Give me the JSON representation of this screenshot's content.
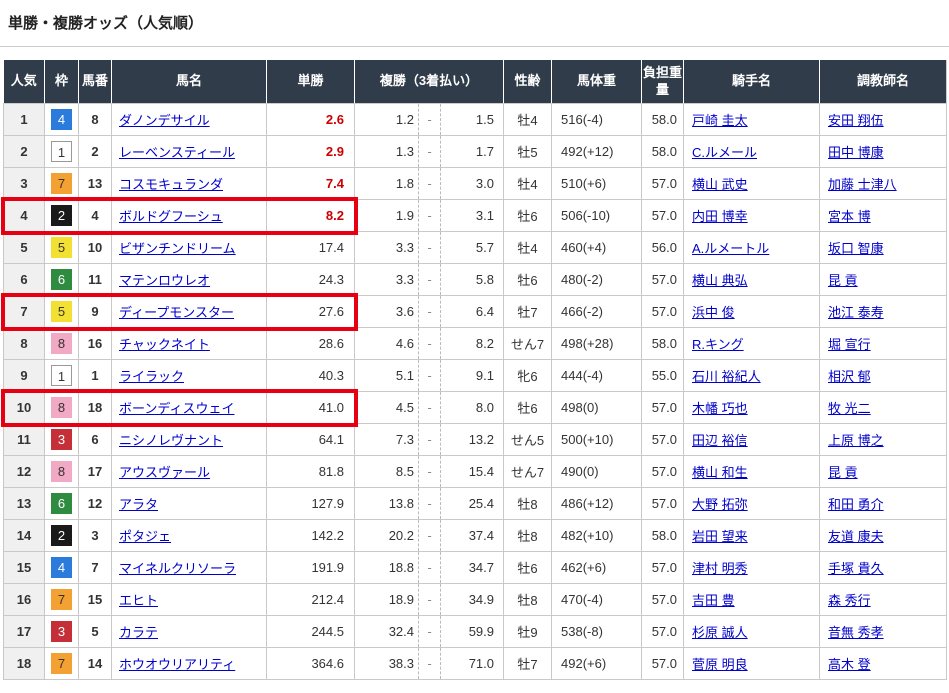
{
  "title": "単勝・複勝オッズ（人気順）",
  "columns": {
    "rank": "人気",
    "waku": "枠",
    "num": "馬番",
    "name": "馬名",
    "win": "単勝",
    "place": "複勝（3着払い）",
    "sexage": "性齢",
    "weight": "馬体重",
    "carry": "負担重量",
    "jockey": "騎手名",
    "trainer": "調教師名"
  },
  "place_separator": "-",
  "colors": {
    "header_bg": "#303c49",
    "link": "#0000cc",
    "hot_odds": "#cc0000",
    "highlight_border": "#e60012",
    "rank_col_bg": "#f0f0f0",
    "waku": {
      "1": {
        "bg": "#ffffff",
        "fg": "#333333",
        "border": "#999999"
      },
      "2": {
        "bg": "#1a1a1a",
        "fg": "#ffffff"
      },
      "3": {
        "bg": "#c53038",
        "fg": "#ffffff"
      },
      "4": {
        "bg": "#2b7bdc",
        "fg": "#ffffff"
      },
      "5": {
        "bg": "#f2e132",
        "fg": "#333333"
      },
      "6": {
        "bg": "#2e8b3f",
        "fg": "#ffffff"
      },
      "7": {
        "bg": "#f2a132",
        "fg": "#333333"
      },
      "8": {
        "bg": "#f2a9c4",
        "fg": "#333333"
      }
    }
  },
  "table": {
    "rows": [
      {
        "rank": "1",
        "waku": "4",
        "num": "8",
        "name": "ダノンデサイル",
        "win": "2.6",
        "win_hot": true,
        "place_low": "1.2",
        "place_high": "1.5",
        "sexage": "牡4",
        "weight": "516(-4)",
        "carry": "58.0",
        "jockey": "戸崎 圭太",
        "trainer": "安田 翔伍",
        "highlight": false
      },
      {
        "rank": "2",
        "waku": "1",
        "num": "2",
        "name": "レーベンスティール",
        "win": "2.9",
        "win_hot": true,
        "place_low": "1.3",
        "place_high": "1.7",
        "sexage": "牡5",
        "weight": "492(+12)",
        "carry": "58.0",
        "jockey": "C.ルメール",
        "trainer": "田中 博康",
        "highlight": false
      },
      {
        "rank": "3",
        "waku": "7",
        "num": "13",
        "name": "コスモキュランダ",
        "win": "7.4",
        "win_hot": true,
        "place_low": "1.8",
        "place_high": "3.0",
        "sexage": "牡4",
        "weight": "510(+6)",
        "carry": "57.0",
        "jockey": "横山 武史",
        "trainer": "加藤 士津八",
        "highlight": false
      },
      {
        "rank": "4",
        "waku": "2",
        "num": "4",
        "name": "ボルドグフーシュ",
        "win": "8.2",
        "win_hot": true,
        "place_low": "1.9",
        "place_high": "3.1",
        "sexage": "牡6",
        "weight": "506(-10)",
        "carry": "57.0",
        "jockey": "内田 博幸",
        "trainer": "宮本 博",
        "highlight": true
      },
      {
        "rank": "5",
        "waku": "5",
        "num": "10",
        "name": "ビザンチンドリーム",
        "win": "17.4",
        "win_hot": false,
        "place_low": "3.3",
        "place_high": "5.7",
        "sexage": "牡4",
        "weight": "460(+4)",
        "carry": "56.0",
        "jockey": "A.ルメートル",
        "trainer": "坂口 智康",
        "highlight": false
      },
      {
        "rank": "6",
        "waku": "6",
        "num": "11",
        "name": "マテンロウレオ",
        "win": "24.3",
        "win_hot": false,
        "place_low": "3.3",
        "place_high": "5.8",
        "sexage": "牡6",
        "weight": "480(-2)",
        "carry": "57.0",
        "jockey": "横山 典弘",
        "trainer": "昆 貢",
        "highlight": false
      },
      {
        "rank": "7",
        "waku": "5",
        "num": "9",
        "name": "ディープモンスター",
        "win": "27.6",
        "win_hot": false,
        "place_low": "3.6",
        "place_high": "6.4",
        "sexage": "牡7",
        "weight": "466(-2)",
        "carry": "57.0",
        "jockey": "浜中 俊",
        "trainer": "池江 泰寿",
        "highlight": true
      },
      {
        "rank": "8",
        "waku": "8",
        "num": "16",
        "name": "チャックネイト",
        "win": "28.6",
        "win_hot": false,
        "place_low": "4.6",
        "place_high": "8.2",
        "sexage": "せん7",
        "weight": "498(+28)",
        "carry": "58.0",
        "jockey": "R.キング",
        "trainer": "堀 宣行",
        "highlight": false
      },
      {
        "rank": "9",
        "waku": "1",
        "num": "1",
        "name": "ライラック",
        "win": "40.3",
        "win_hot": false,
        "place_low": "5.1",
        "place_high": "9.1",
        "sexage": "牝6",
        "weight": "444(-4)",
        "carry": "55.0",
        "jockey": "石川 裕紀人",
        "trainer": "相沢 郁",
        "highlight": false
      },
      {
        "rank": "10",
        "waku": "8",
        "num": "18",
        "name": "ボーンディスウェイ",
        "win": "41.0",
        "win_hot": false,
        "place_low": "4.5",
        "place_high": "8.0",
        "sexage": "牡6",
        "weight": "498(0)",
        "carry": "57.0",
        "jockey": "木幡 巧也",
        "trainer": "牧 光二",
        "highlight": true
      },
      {
        "rank": "11",
        "waku": "3",
        "num": "6",
        "name": "ニシノレヴナント",
        "win": "64.1",
        "win_hot": false,
        "place_low": "7.3",
        "place_high": "13.2",
        "sexage": "せん5",
        "weight": "500(+10)",
        "carry": "57.0",
        "jockey": "田辺 裕信",
        "trainer": "上原 博之",
        "highlight": false
      },
      {
        "rank": "12",
        "waku": "8",
        "num": "17",
        "name": "アウスヴァール",
        "win": "81.8",
        "win_hot": false,
        "place_low": "8.5",
        "place_high": "15.4",
        "sexage": "せん7",
        "weight": "490(0)",
        "carry": "57.0",
        "jockey": "横山 和生",
        "trainer": "昆 貢",
        "highlight": false
      },
      {
        "rank": "13",
        "waku": "6",
        "num": "12",
        "name": "アラタ",
        "win": "127.9",
        "win_hot": false,
        "place_low": "13.8",
        "place_high": "25.4",
        "sexage": "牡8",
        "weight": "486(+12)",
        "carry": "57.0",
        "jockey": "大野 拓弥",
        "trainer": "和田 勇介",
        "highlight": false
      },
      {
        "rank": "14",
        "waku": "2",
        "num": "3",
        "name": "ポタジェ",
        "win": "142.2",
        "win_hot": false,
        "place_low": "20.2",
        "place_high": "37.4",
        "sexage": "牡8",
        "weight": "482(+10)",
        "carry": "58.0",
        "jockey": "岩田 望来",
        "trainer": "友道 康夫",
        "highlight": false
      },
      {
        "rank": "15",
        "waku": "4",
        "num": "7",
        "name": "マイネルクリソーラ",
        "win": "191.9",
        "win_hot": false,
        "place_low": "18.8",
        "place_high": "34.7",
        "sexage": "牡6",
        "weight": "462(+6)",
        "carry": "57.0",
        "jockey": "津村 明秀",
        "trainer": "手塚 貴久",
        "highlight": false
      },
      {
        "rank": "16",
        "waku": "7",
        "num": "15",
        "name": "エヒト",
        "win": "212.4",
        "win_hot": false,
        "place_low": "18.9",
        "place_high": "34.9",
        "sexage": "牡8",
        "weight": "470(-4)",
        "carry": "57.0",
        "jockey": "吉田 豊",
        "trainer": "森 秀行",
        "highlight": false
      },
      {
        "rank": "17",
        "waku": "3",
        "num": "5",
        "name": "カラテ",
        "win": "244.5",
        "win_hot": false,
        "place_low": "32.4",
        "place_high": "59.9",
        "sexage": "牡9",
        "weight": "538(-8)",
        "carry": "57.0",
        "jockey": "杉原 誠人",
        "trainer": "音無 秀孝",
        "highlight": false
      },
      {
        "rank": "18",
        "waku": "7",
        "num": "14",
        "name": "ホウオウリアリティ",
        "win": "364.6",
        "win_hot": false,
        "place_low": "38.3",
        "place_high": "71.0",
        "sexage": "牡7",
        "weight": "492(+6)",
        "carry": "57.0",
        "jockey": "菅原 明良",
        "trainer": "高木 登",
        "highlight": false
      }
    ]
  }
}
